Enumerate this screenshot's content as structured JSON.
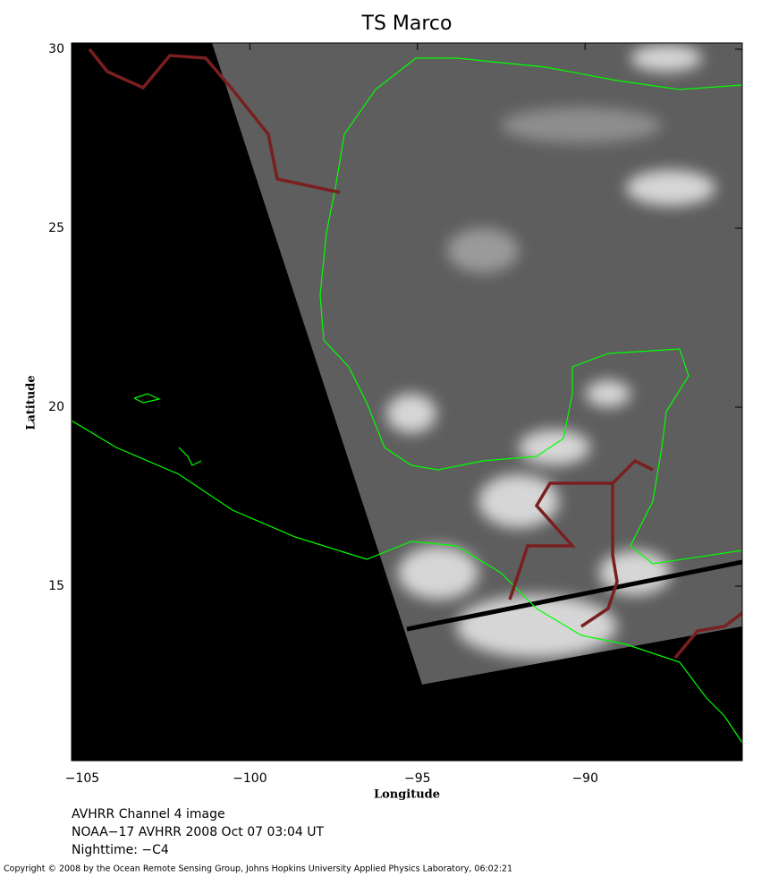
{
  "map": {
    "title": "TS Marco",
    "x_label": "Longitude",
    "y_label": "Latitude",
    "xlim": [
      -105.32,
      -85.31
    ],
    "ylim": [
      10.125,
      30.175
    ],
    "xticks": [
      {
        "value": -105,
        "label": "−105"
      },
      {
        "value": -100,
        "label": "−100"
      },
      {
        "value": -95,
        "label": "−95"
      },
      {
        "value": -90,
        "label": "−90"
      }
    ],
    "yticks": [
      15,
      20,
      25,
      30
    ],
    "caption": [
      "AVHRR Channel 4 image",
      "NOAA−17 AVHRR 2008 Oct 07 03:04 UT",
      "Nighttime: −C4"
    ],
    "copyright": "Copyright © 2008 by the Ocean Remote Sensing Group, Johns Hopkins University Applied Physics Laboratory, 06:02:21"
  }
}
